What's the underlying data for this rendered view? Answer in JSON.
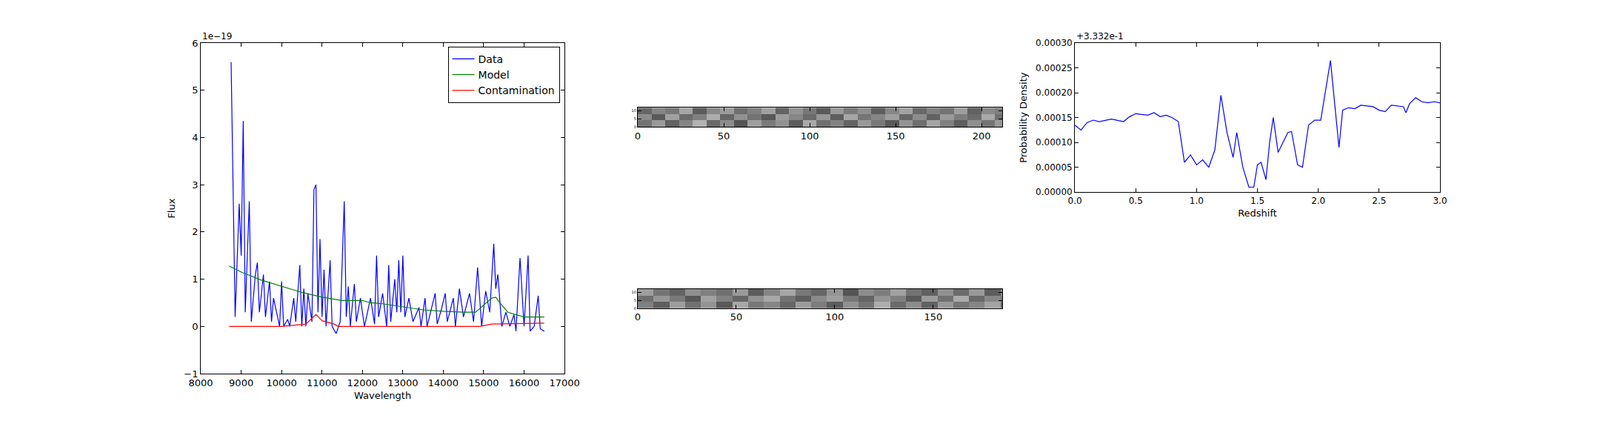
{
  "chart_data": [
    {
      "type": "line",
      "x_label": "Wavelength",
      "y_label": "Flux",
      "annotations": [
        {
          "text": "1e−19"
        }
      ],
      "legend": "upper right",
      "xlim": [
        8000,
        17000
      ],
      "ylim": [
        -1,
        6
      ],
      "xticks": [
        8000,
        9000,
        10000,
        11000,
        12000,
        13000,
        14000,
        15000,
        16000,
        17000
      ],
      "yticks": [
        {
          "value": -1,
          "label": "−1"
        },
        0,
        1,
        2,
        3,
        4,
        5,
        6
      ],
      "series": [
        {
          "name": "Data",
          "color": "#0000ff",
          "x": [
            8750,
            8850,
            8950,
            9000,
            9050,
            9100,
            9200,
            9250,
            9350,
            9400,
            9450,
            9550,
            9600,
            9700,
            9750,
            9800,
            9850,
            9950,
            10000,
            10050,
            10150,
            10200,
            10300,
            10350,
            10450,
            10500,
            10550,
            10600,
            10650,
            10750,
            10800,
            10850,
            10900,
            10950,
            11000,
            11050,
            11100,
            11200,
            11250,
            11350,
            11450,
            11550,
            11600,
            11650,
            11700,
            11800,
            11850,
            11950,
            12050,
            12200,
            12300,
            12350,
            12400,
            12500,
            12600,
            12650,
            12700,
            12800,
            12850,
            12900,
            12950,
            13000,
            13050,
            13150,
            13250,
            13400,
            13450,
            13550,
            13600,
            13800,
            13850,
            13950,
            14050,
            14100,
            14250,
            14300,
            14400,
            14500,
            14650,
            14750,
            14850,
            14950,
            15050,
            15150,
            15250,
            15300,
            15350,
            15450,
            15550,
            15650,
            15750,
            15800,
            15900,
            16000,
            16100,
            16150,
            16250,
            16350,
            16400,
            16500
          ],
          "values": [
            5.6,
            0.2,
            2.6,
            1.5,
            4.35,
            0.3,
            2.65,
            0.1,
            1.1,
            1.35,
            0.3,
            1.1,
            0.2,
            0.95,
            0.1,
            0.6,
            0.4,
            0.0,
            0.95,
            0.0,
            0.15,
            0.0,
            0.6,
            0.1,
            1.3,
            0.0,
            0.8,
            0.0,
            0.7,
            0.1,
            2.9,
            3.0,
            0.3,
            1.85,
            0.2,
            1.2,
            0.0,
            1.4,
            0.0,
            -0.15,
            0.1,
            2.65,
            0.2,
            0.85,
            0.0,
            0.9,
            0.1,
            0.6,
            0.0,
            0.6,
            0.05,
            1.5,
            0.2,
            0.7,
            0.0,
            1.3,
            0.1,
            1.0,
            0.3,
            1.4,
            0.3,
            1.5,
            0.2,
            0.6,
            0.1,
            0.4,
            0.0,
            0.6,
            0.0,
            0.7,
            0.05,
            0.35,
            0.7,
            0.1,
            0.6,
            0.0,
            0.8,
            0.2,
            0.7,
            0.1,
            1.25,
            0.0,
            0.75,
            0.3,
            1.75,
            0.8,
            1.1,
            0.0,
            0.3,
            0.0,
            0.25,
            -0.1,
            1.45,
            0.0,
            1.5,
            -0.1,
            0.0,
            0.65,
            -0.05,
            -0.1
          ]
        },
        {
          "name": "Model",
          "color": "#008000",
          "x": [
            8700,
            9000,
            9500,
            10000,
            10500,
            11000,
            11500,
            12000,
            12200,
            12500,
            13000,
            13500,
            14000,
            14500,
            14800,
            15000,
            15200,
            15300,
            15400,
            15600,
            16000,
            16500
          ],
          "values": [
            1.28,
            1.15,
            0.98,
            0.85,
            0.72,
            0.62,
            0.55,
            0.55,
            0.5,
            0.48,
            0.42,
            0.35,
            0.32,
            0.3,
            0.3,
            0.45,
            0.6,
            0.62,
            0.5,
            0.3,
            0.2,
            0.2
          ]
        },
        {
          "name": "Contamination",
          "color": "#ff0000",
          "x": [
            8700,
            10000,
            10600,
            10850,
            11000,
            11300,
            11400,
            14900,
            15200,
            16500
          ],
          "values": [
            0,
            0,
            0.05,
            0.25,
            0.12,
            0.05,
            0,
            0,
            0.05,
            0.07
          ]
        }
      ]
    },
    {
      "type": "heatmap",
      "color": "gray",
      "xlim": [
        0,
        212
      ],
      "ylim": [
        0,
        12
      ],
      "xticks": [
        0,
        50,
        100,
        150,
        200
      ],
      "yticks": [
        0,
        5,
        10
      ],
      "zlim": [
        0,
        1
      ],
      "x": [
        4,
        12,
        20,
        28,
        36,
        44,
        52,
        60,
        68,
        76,
        84,
        92,
        100,
        108,
        116,
        124,
        132,
        140,
        148,
        156,
        164,
        172,
        180,
        188,
        196,
        204,
        212
      ],
      "y": [
        2,
        6,
        10
      ],
      "cells": [
        [
          0.45,
          0.6,
          0.38,
          0.52,
          0.7,
          0.41,
          0.55,
          0.33,
          0.62,
          0.48,
          0.57,
          0.36,
          0.66,
          0.44,
          0.51,
          0.39,
          0.6,
          0.47,
          0.35,
          0.58,
          0.43,
          0.64,
          0.5,
          0.37,
          0.56,
          0.46,
          0.6
        ],
        [
          0.55,
          0.35,
          0.63,
          0.42,
          0.5,
          0.68,
          0.4,
          0.57,
          0.45,
          0.34,
          0.61,
          0.53,
          0.42,
          0.59,
          0.37,
          0.65,
          0.46,
          0.52,
          0.62,
          0.4,
          0.55,
          0.38,
          0.6,
          0.49,
          0.42,
          0.66,
          0.44
        ],
        [
          0.4,
          0.52,
          0.47,
          0.65,
          0.36,
          0.54,
          0.61,
          0.43,
          0.5,
          0.63,
          0.39,
          0.58,
          0.47,
          0.35,
          0.6,
          0.48,
          0.56,
          0.37,
          0.53,
          0.64,
          0.41,
          0.5,
          0.45,
          0.62,
          0.38,
          0.54,
          0.5
        ]
      ]
    },
    {
      "type": "heatmap",
      "color": "gray",
      "xlim": [
        0,
        185
      ],
      "ylim": [
        0,
        12
      ],
      "xticks": [
        0,
        50,
        100,
        150
      ],
      "yticks": [
        0,
        5,
        10
      ],
      "zlim": [
        0,
        1
      ],
      "x": [
        4,
        12,
        20,
        28,
        36,
        44,
        52,
        60,
        68,
        76,
        84,
        92,
        100,
        108,
        116,
        124,
        132,
        140,
        148,
        156,
        164,
        172,
        180,
        188
      ],
      "y": [
        2,
        6,
        10
      ],
      "cells": [
        [
          0.5,
          0.37,
          0.62,
          0.44,
          0.58,
          0.35,
          0.66,
          0.47,
          0.53,
          0.4,
          0.61,
          0.49,
          0.36,
          0.57,
          0.45,
          0.68,
          0.42,
          0.55,
          0.38,
          0.6,
          0.46,
          0.52,
          0.64,
          0.41
        ],
        [
          0.43,
          0.59,
          0.48,
          0.34,
          0.63,
          0.51,
          0.4,
          0.57,
          0.66,
          0.45,
          0.37,
          0.54,
          0.62,
          0.47,
          0.39,
          0.58,
          0.5,
          0.35,
          0.61,
          0.44,
          0.67,
          0.41,
          0.53,
          0.48
        ],
        [
          0.62,
          0.46,
          0.39,
          0.56,
          0.5,
          0.44,
          0.6,
          0.36,
          0.52,
          0.65,
          0.47,
          0.4,
          0.58,
          0.33,
          0.55,
          0.49,
          0.63,
          0.45,
          0.38,
          0.57,
          0.42,
          0.6,
          0.36,
          0.54
        ]
      ]
    },
    {
      "type": "line",
      "x_label": "Redshift",
      "y_label": "Probability Density",
      "annotations": [
        {
          "text": "+3.332e-1"
        }
      ],
      "xlim": [
        0,
        3
      ],
      "ylim": [
        0,
        0.0003
      ],
      "xticks": [
        {
          "value": 0,
          "label": "0.0"
        },
        {
          "value": 0.5,
          "label": "0.5"
        },
        {
          "value": 1,
          "label": "1.0"
        },
        {
          "value": 1.5,
          "label": "1.5"
        },
        {
          "value": 2,
          "label": "2.0"
        },
        {
          "value": 2.5,
          "label": "2.5"
        },
        {
          "value": 3,
          "label": "3.0"
        }
      ],
      "yticks": [
        {
          "value": 0,
          "label": "0.00000"
        },
        {
          "value": 5e-05,
          "label": "0.00005"
        },
        {
          "value": 0.0001,
          "label": "0.00010"
        },
        {
          "value": 0.00015,
          "label": "0.00015"
        },
        {
          "value": 0.0002,
          "label": "0.00020"
        },
        {
          "value": 0.00025,
          "label": "0.00025"
        },
        {
          "value": 0.0003,
          "label": "0.00030"
        }
      ],
      "color": "#0000ff",
      "x": [
        0.0,
        0.05,
        0.1,
        0.15,
        0.2,
        0.3,
        0.4,
        0.45,
        0.5,
        0.6,
        0.65,
        0.7,
        0.75,
        0.8,
        0.85,
        0.9,
        0.95,
        1.0,
        1.05,
        1.1,
        1.15,
        1.2,
        1.25,
        1.3,
        1.33,
        1.38,
        1.43,
        1.47,
        1.5,
        1.53,
        1.57,
        1.6,
        1.63,
        1.67,
        1.75,
        1.78,
        1.83,
        1.87,
        1.92,
        1.97,
        2.02,
        2.1,
        2.17,
        2.2,
        2.25,
        2.3,
        2.35,
        2.45,
        2.5,
        2.55,
        2.6,
        2.7,
        2.72,
        2.75,
        2.8,
        2.85,
        2.9,
        2.95,
        3.0
      ],
      "values": [
        0.000135,
        0.000125,
        0.00014,
        0.000145,
        0.000142,
        0.000147,
        0.000142,
        0.000152,
        0.000158,
        0.000155,
        0.00016,
        0.000152,
        0.000155,
        0.00015,
        0.000142,
        6e-05,
        7.5e-05,
        5.5e-05,
        6.5e-05,
        5e-05,
        8.5e-05,
        0.000195,
        0.00012,
        7e-05,
        0.00012,
        5e-05,
        1e-05,
        1e-05,
        5.5e-05,
        6e-05,
        2.5e-05,
        0.0001,
        0.00015,
        8e-05,
        0.00012,
        0.000122,
        5.5e-05,
        5e-05,
        0.000135,
        0.000145,
        0.000145,
        0.000265,
        9e-05,
        0.000165,
        0.00017,
        0.000168,
        0.000175,
        0.000172,
        0.000165,
        0.000162,
        0.000175,
        0.000172,
        0.00016,
        0.000178,
        0.00019,
        0.000182,
        0.00018,
        0.000182,
        0.00018
      ]
    }
  ]
}
